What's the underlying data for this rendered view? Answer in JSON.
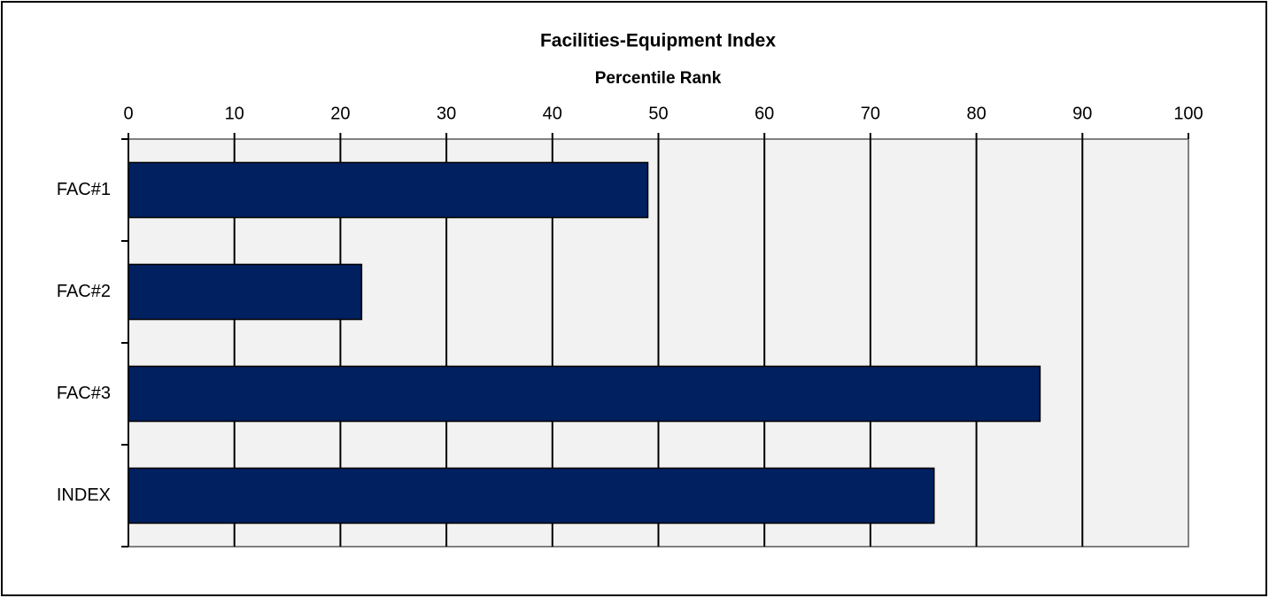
{
  "chart_data": {
    "type": "bar",
    "orientation": "horizontal",
    "title": "Facilities-Equipment Index",
    "x_label": "Percentile Rank",
    "categories": [
      "FAC#1",
      "FAC#2",
      "FAC#3",
      "INDEX"
    ],
    "values": [
      49,
      22,
      86,
      76
    ],
    "color": "#002060",
    "xlim": [
      0,
      100
    ],
    "xticks": [
      0,
      10,
      20,
      30,
      40,
      50,
      60,
      70,
      80,
      90,
      100
    ],
    "grid": true
  }
}
